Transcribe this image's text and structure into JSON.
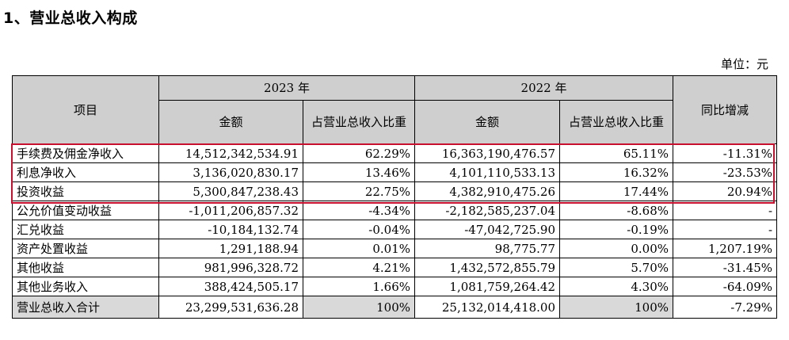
{
  "heading": "1、营业总收入构成",
  "unit": "单位：元",
  "table": {
    "col_item": "项目",
    "year_2023": "2023 年",
    "year_2022": "2022 年",
    "col_yoy": "同比增减",
    "amount": "金额",
    "share": "占营业总收入比重",
    "rows": [
      {
        "item": "手续费及佣金净收入",
        "a2023": "14,512,342,534.91",
        "p2023": "62.29%",
        "a2022": "16,363,190,476.57",
        "p2022": "65.11%",
        "yoy": "-11.31%"
      },
      {
        "item": "利息净收入",
        "a2023": "3,136,020,830.17",
        "p2023": "13.46%",
        "a2022": "4,101,110,533.13",
        "p2022": "16.32%",
        "yoy": "-23.53%"
      },
      {
        "item": "投资收益",
        "a2023": "5,300,847,238.43",
        "p2023": "22.75%",
        "a2022": "4,382,910,475.26",
        "p2022": "17.44%",
        "yoy": "20.94%"
      },
      {
        "item": "公允价值变动收益",
        "a2023": "-1,011,206,857.32",
        "p2023": "-4.34%",
        "a2022": "-2,182,585,237.04",
        "p2022": "-8.68%",
        "yoy": "-"
      },
      {
        "item": "汇兑收益",
        "a2023": "-10,184,132.74",
        "p2023": "-0.04%",
        "a2022": "-47,042,725.90",
        "p2022": "-0.19%",
        "yoy": "-"
      },
      {
        "item": "资产处置收益",
        "a2023": "1,291,188.94",
        "p2023": "0.01%",
        "a2022": "98,775.77",
        "p2022": "0.00%",
        "yoy": "1,207.19%"
      },
      {
        "item": "其他收益",
        "a2023": "981,996,328.72",
        "p2023": "4.21%",
        "a2022": "1,432,572,855.79",
        "p2022": "5.70%",
        "yoy": "-31.45%"
      },
      {
        "item": "其他业务收入",
        "a2023": "388,424,505.17",
        "p2023": "1.66%",
        "a2022": "1,081,759,264.42",
        "p2022": "4.30%",
        "yoy": "-64.09%"
      }
    ],
    "total": {
      "item": "营业总收入合计",
      "a2023": "23,299,531,636.28",
      "p2023": "100%",
      "a2022": "25,132,014,418.00",
      "p2022": "100%",
      "yoy": "-7.29%"
    }
  },
  "colors": {
    "header_bg": "#cfcfcf",
    "highlight_border": "#c8102e"
  }
}
